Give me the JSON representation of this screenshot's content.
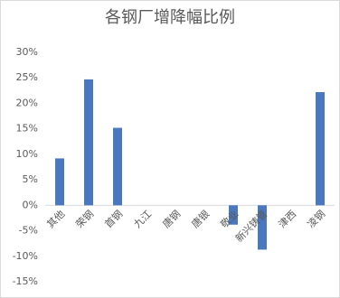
{
  "chart_data": {
    "type": "bar",
    "title": "各钢厂增降幅比例",
    "categories": [
      "其他",
      "荣钢",
      "首钢",
      "九江",
      "唐钢",
      "唐银",
      "敬业",
      "新兴铸管",
      "津西",
      "凌钢"
    ],
    "values": [
      9.2,
      24.7,
      15.2,
      0,
      0,
      0,
      -3.8,
      -8.7,
      0,
      22.2
    ],
    "color": "#4a78bf",
    "ylim": [
      -15,
      30
    ],
    "yticks": [
      {
        "value": -15,
        "label": "-15%"
      },
      {
        "value": -10,
        "label": "-10%"
      },
      {
        "value": -5,
        "label": "-5%"
      },
      {
        "value": 0,
        "label": "0%"
      },
      {
        "value": 5,
        "label": "5%"
      },
      {
        "value": 10,
        "label": "10%"
      },
      {
        "value": 15,
        "label": "15%"
      },
      {
        "value": 20,
        "label": "20%"
      },
      {
        "value": 25,
        "label": "25%"
      },
      {
        "value": 30,
        "label": "30%"
      }
    ],
    "grid": false
  }
}
